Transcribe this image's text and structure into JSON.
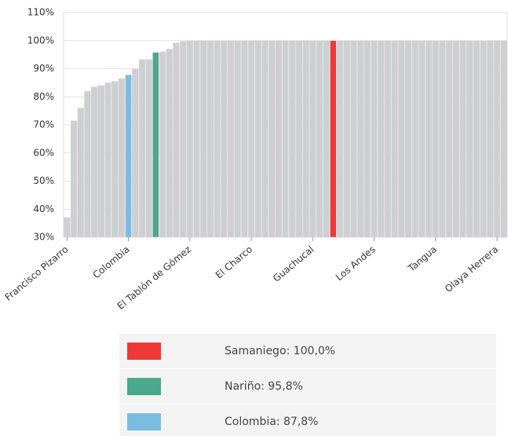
{
  "chart_data": {
    "type": "bar",
    "categories": [
      "Francisco Pizarro",
      null,
      null,
      null,
      null,
      null,
      null,
      null,
      null,
      "Colombia",
      null,
      null,
      null,
      null,
      null,
      null,
      null,
      null,
      "El Tablón de Gómez",
      null,
      null,
      null,
      null,
      null,
      null,
      null,
      null,
      "El Charco",
      null,
      null,
      null,
      null,
      null,
      null,
      null,
      null,
      "Guachucal",
      null,
      null,
      null,
      null,
      null,
      null,
      null,
      null,
      "Los Andes",
      null,
      null,
      null,
      null,
      null,
      null,
      null,
      null,
      "Tangua",
      null,
      null,
      null,
      null,
      null,
      null,
      null,
      null,
      "Olaya Herrera",
      null
    ],
    "values": [
      37,
      71.5,
      76,
      82,
      83.5,
      84,
      85,
      85.5,
      86.5,
      87.8,
      90,
      93.3,
      93.3,
      95.8,
      96,
      97,
      99.2,
      99.7,
      100,
      100,
      100,
      100,
      100,
      100,
      100,
      100,
      100,
      100,
      100,
      100,
      100,
      100,
      100,
      100,
      100,
      100,
      100,
      100,
      100,
      100,
      100,
      100,
      100,
      100,
      100,
      100,
      100,
      100,
      100,
      100,
      100,
      100,
      100,
      100,
      100,
      100,
      100,
      100,
      100,
      100,
      100,
      100,
      100,
      100,
      100
    ],
    "colors": [
      "#cbd0d3",
      "#cbd0d3",
      "#cbd0d3",
      "#cbd0d3",
      "#cbd0d3",
      "#cbd0d3",
      "#cbd0d3",
      "#cbd0d3",
      "#cbd0d3",
      "#7bbde0",
      "#cbd0d3",
      "#cbd0d3",
      "#cbd0d3",
      "#4aa88f",
      "#cbd0d3",
      "#cbd0d3",
      "#cbd0d3",
      "#cbd0d3",
      "#cbd0d3",
      "#cbd0d3",
      "#cbd0d3",
      "#cbd0d3",
      "#cbd0d3",
      "#cbd0d3",
      "#cbd0d3",
      "#cbd0d3",
      "#cbd0d3",
      "#cbd0d3",
      "#cbd0d3",
      "#cbd0d3",
      "#cbd0d3",
      "#cbd0d3",
      "#cbd0d3",
      "#cbd0d3",
      "#cbd0d3",
      "#cbd0d3",
      "#cbd0d3",
      "#cbd0d3",
      "#cbd0d3",
      "#ee3a36",
      "#cbd0d3",
      "#cbd0d3",
      "#cbd0d3",
      "#cbd0d3",
      "#cbd0d3",
      "#cbd0d3",
      "#cbd0d3",
      "#cbd0d3",
      "#cbd0d3",
      "#cbd0d3",
      "#cbd0d3",
      "#cbd0d3",
      "#cbd0d3",
      "#cbd0d3",
      "#cbd0d3",
      "#cbd0d3",
      "#cbd0d3",
      "#cbd0d3",
      "#cbd0d3",
      "#cbd0d3",
      "#cbd0d3",
      "#cbd0d3",
      "#cbd0d3",
      "#cbd0d3",
      "#cbd0d3"
    ],
    "ylim": [
      30,
      110
    ],
    "yticks": [
      {
        "value": 30,
        "label": "30%"
      },
      {
        "value": 40,
        "label": "40%"
      },
      {
        "value": 50,
        "label": "50%"
      },
      {
        "value": 60,
        "label": "60%"
      },
      {
        "value": 70,
        "label": "70%"
      },
      {
        "value": 80,
        "label": "80%"
      },
      {
        "value": 90,
        "label": "90%"
      },
      {
        "value": 100,
        "label": "100%"
      },
      {
        "value": 110,
        "label": "110%"
      }
    ],
    "grid": true,
    "legend": [
      {
        "label": "Samaniego:  100,0%",
        "color": "#ee3a36"
      },
      {
        "label": "Nariño:  95,8%",
        "color": "#4aa88f"
      },
      {
        "label": "Colombia:  87,8%",
        "color": "#7bbde0"
      }
    ]
  }
}
